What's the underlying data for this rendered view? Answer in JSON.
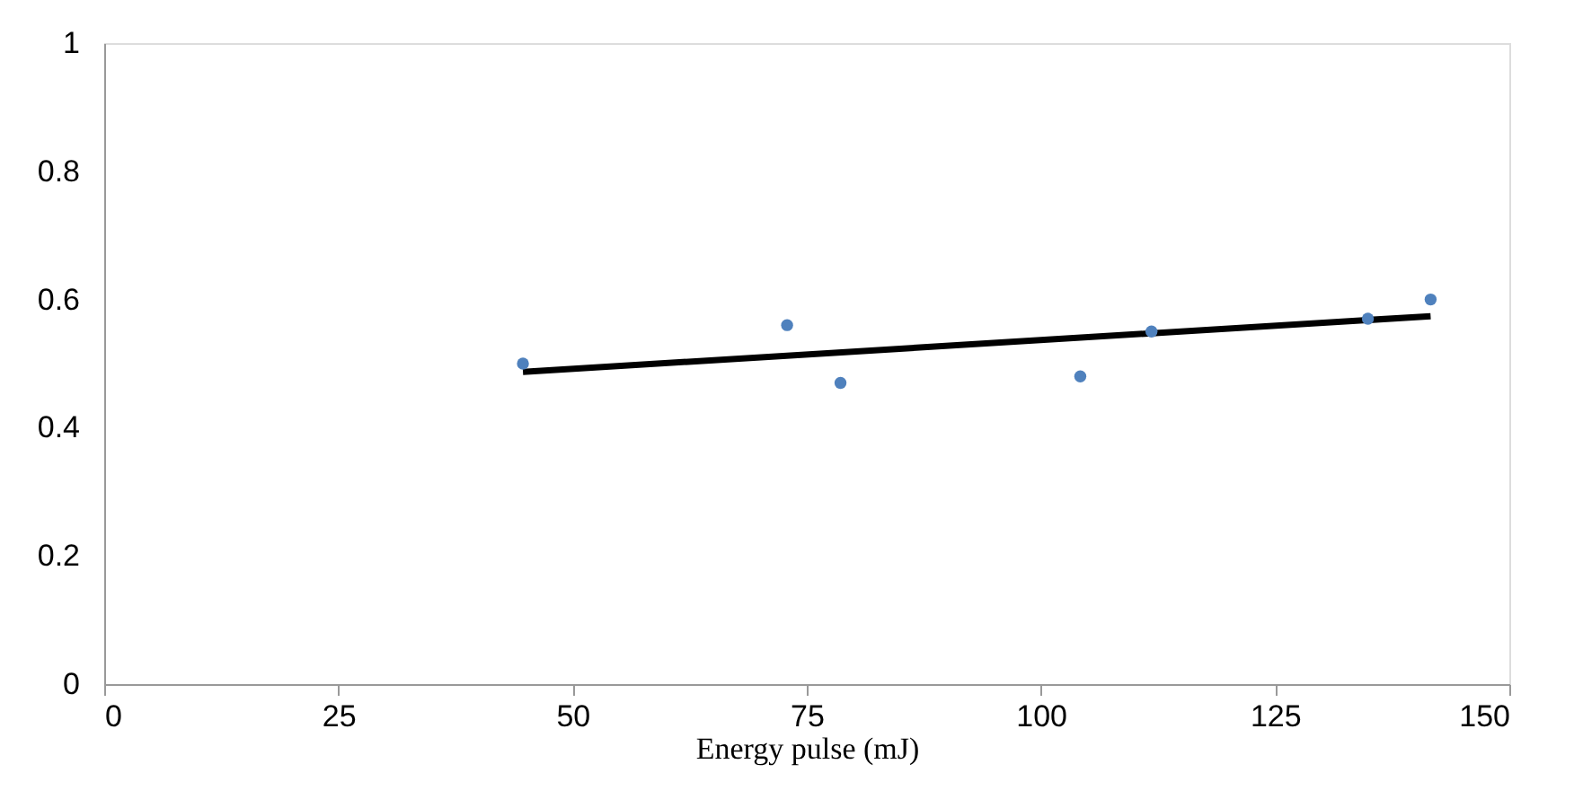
{
  "chart_data": {
    "type": "scatter",
    "xlabel": "Energy pulse (mJ)",
    "series": [
      {
        "color": "#4f81bd",
        "x": [
          44.7,
          72.9,
          78.6,
          104.2,
          111.8,
          134.9,
          141.6
        ],
        "values": [
          0.5,
          0.56,
          0.47,
          0.48,
          0.55,
          0.57,
          0.6
        ]
      },
      {
        "type": "line",
        "color": "#000000",
        "x": [
          44.7,
          141.6
        ],
        "values": [
          0.487,
          0.574
        ]
      }
    ],
    "xlim": [
      0,
      150
    ],
    "xticks": [
      0,
      25,
      50,
      75,
      100,
      125,
      150
    ],
    "ylim": [
      0,
      1
    ],
    "yticks": [
      0,
      0.2,
      0.4,
      0.6,
      0.8,
      1
    ],
    "grid": false
  }
}
